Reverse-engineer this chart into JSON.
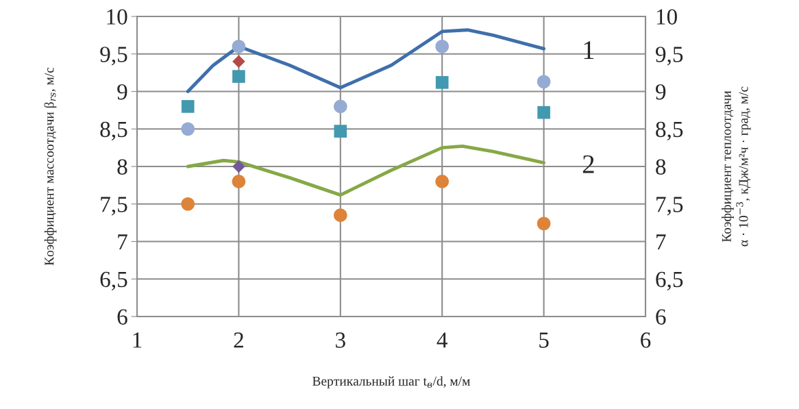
{
  "chart_data": {
    "type": "scatter",
    "xlabel": "Вертикальный шаг t$_{в}$/d, м/м",
    "ylabel": "Коэффициент массоотдачи β$_{rs}$, м/с",
    "y2label": "Коэффициент теплоотдачи\nα · 10$^{−3}$, кДж/м²ч · град, м/с",
    "xlim": [
      1,
      6
    ],
    "xticks": [
      1,
      2,
      3,
      4,
      5,
      6
    ],
    "ylim": [
      6,
      10
    ],
    "yticks": [
      6,
      {
        "value": 6.5,
        "label": "6,5"
      },
      7,
      {
        "value": 7.5,
        "label": "7,5"
      },
      8,
      {
        "value": 8.5,
        "label": "8,5"
      },
      9,
      {
        "value": 9.5,
        "label": "9,5"
      },
      10
    ],
    "y2lim": [
      6,
      10
    ],
    "y2ticks": [
      6,
      {
        "value": 6.5,
        "label": "6,5"
      },
      7,
      {
        "value": 7.5,
        "label": "7,5"
      },
      8,
      {
        "value": 8.5,
        "label": "8,5"
      },
      9,
      {
        "value": 9.5,
        "label": "9,5"
      },
      10
    ],
    "grid": true,
    "legend": false,
    "series": [
      {
        "type": "line",
        "name": "1",
        "color": "#3f6fab",
        "marker": "none",
        "x": [
          1.5,
          1.75,
          2,
          2.5,
          3,
          3.5,
          4,
          4.25,
          4.5,
          5
        ],
        "values": [
          9.0,
          9.35,
          9.6,
          9.35,
          9.05,
          9.35,
          9.8,
          9.82,
          9.75,
          9.57
        ]
      },
      {
        "type": "line",
        "name": "2",
        "color": "#86a846",
        "marker": "none",
        "x": [
          1.5,
          1.85,
          2,
          2.5,
          3,
          3.5,
          4,
          4.2,
          4.5,
          5
        ],
        "values": [
          8.0,
          8.08,
          8.06,
          7.85,
          7.62,
          7.95,
          8.25,
          8.27,
          8.2,
          8.05
        ]
      },
      {
        "color": "#95abd3",
        "marker": "circle",
        "x": [
          1.5,
          2,
          3,
          4,
          5
        ],
        "values": [
          8.5,
          9.6,
          8.8,
          9.6,
          9.13
        ]
      },
      {
        "color": "#4299b0",
        "marker": "square",
        "x": [
          1.5,
          2,
          3,
          4,
          5
        ],
        "values": [
          8.8,
          9.2,
          8.47,
          9.12,
          8.72
        ]
      },
      {
        "color": "#b44a45",
        "marker": "diamond",
        "x": [
          2
        ],
        "values": [
          9.4
        ]
      },
      {
        "color": "#73599a",
        "marker": "diamond",
        "x": [
          2
        ],
        "values": [
          8.0
        ]
      },
      {
        "color": "#dd8439",
        "marker": "circle",
        "x": [
          1.5,
          2,
          3,
          4,
          5
        ],
        "values": [
          7.5,
          7.8,
          7.35,
          7.8,
          7.24
        ]
      }
    ]
  }
}
